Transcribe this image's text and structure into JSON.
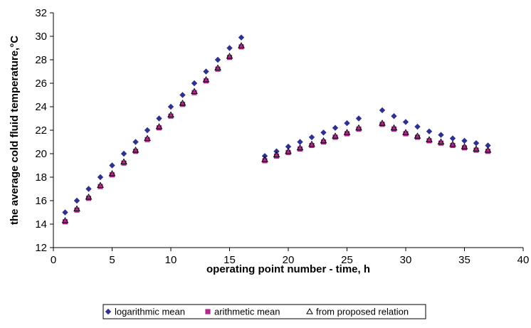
{
  "chart_data": {
    "type": "scatter",
    "title": "",
    "xlabel": "operating point number - time, h",
    "ylabel": "the average cold fluid temperature,°C",
    "xlim": [
      0,
      40
    ],
    "ylim": [
      12,
      32
    ],
    "xticks": [
      0,
      5,
      10,
      15,
      20,
      25,
      30,
      35,
      40
    ],
    "yticks": [
      12,
      14,
      16,
      18,
      20,
      22,
      24,
      26,
      28,
      30,
      32
    ],
    "grid": false,
    "legend_position": "bottom",
    "x": [
      1,
      2,
      3,
      4,
      5,
      6,
      7,
      8,
      9,
      10,
      11,
      12,
      13,
      14,
      15,
      16,
      18,
      19,
      20,
      21,
      22,
      23,
      24,
      25,
      26,
      28,
      29,
      30,
      31,
      32,
      33,
      34,
      35,
      36,
      37
    ],
    "series": [
      {
        "name": "logarithmic mean",
        "marker": "diamond",
        "color": "#2e3192",
        "values": [
          15.0,
          16.0,
          17.0,
          18.0,
          19.0,
          20.0,
          21.0,
          22.0,
          23.0,
          24.0,
          25.0,
          26.0,
          27.0,
          28.0,
          29.0,
          29.9,
          19.8,
          20.2,
          20.6,
          21.0,
          21.4,
          21.8,
          22.2,
          22.6,
          23.0,
          23.7,
          23.2,
          22.7,
          22.3,
          21.9,
          21.6,
          21.3,
          21.1,
          20.9,
          20.7
        ]
      },
      {
        "name": "arithmetic mean",
        "marker": "square",
        "color": "#b0288c",
        "values": [
          14.2,
          15.2,
          16.2,
          17.2,
          18.2,
          19.2,
          20.2,
          21.2,
          22.2,
          23.2,
          24.2,
          25.2,
          26.2,
          27.2,
          28.2,
          29.1,
          19.4,
          19.8,
          20.1,
          20.4,
          20.7,
          21.0,
          21.4,
          21.7,
          22.1,
          22.5,
          22.1,
          21.7,
          21.4,
          21.1,
          20.9,
          20.7,
          20.5,
          20.3,
          20.2
        ]
      },
      {
        "name": "from proposed relation",
        "marker": "triangle",
        "color": "#000000",
        "values": [
          14.3,
          15.3,
          16.3,
          17.3,
          18.3,
          19.3,
          20.3,
          21.3,
          22.3,
          23.3,
          24.3,
          25.3,
          26.3,
          27.3,
          28.3,
          29.2,
          19.5,
          19.9,
          20.2,
          20.5,
          20.8,
          21.1,
          21.5,
          21.8,
          22.2,
          22.6,
          22.2,
          21.8,
          21.5,
          21.2,
          21.0,
          20.8,
          20.6,
          20.4,
          20.3
        ]
      }
    ]
  }
}
